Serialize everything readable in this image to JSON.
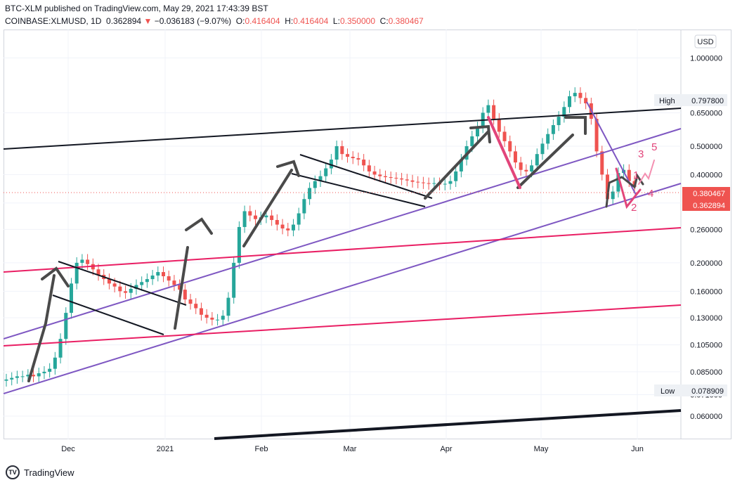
{
  "header": {
    "published": "BTC-XLM published on TradingView.com, May 29, 2021 17:43:39 BST",
    "symbol": "COINBASE:XLMUSD, 1D",
    "last": "0.362894",
    "change_arrow": "▼",
    "change": "−0.036183 (−9.07%)",
    "open_label": "O:",
    "open": "0.416404",
    "high_label": "H:",
    "high": "0.416404",
    "low_label": "L:",
    "low": "0.350000",
    "close_label": "C:",
    "close": "0.380467"
  },
  "footer": {
    "brand": "TradingView",
    "logo_icon": "tradingview-logo-icon"
  },
  "colors": {
    "up": "#26a69a",
    "down": "#ef5350",
    "accent": "#2962ff"
  },
  "chart_data": {
    "type": "candlestick",
    "scale": "log",
    "currency_label": "USD",
    "x_tick_labels": [
      "Dec",
      "2021",
      "Feb",
      "Mar",
      "Apr",
      "May",
      "Jun"
    ],
    "y_tick_labels": [
      "1.000000",
      "0.650000",
      "0.500000",
      "0.400000",
      "0.320000",
      "0.260000",
      "0.200000",
      "0.160000",
      "0.130000",
      "0.105000",
      "0.085000",
      "0.071000",
      "0.060000"
    ],
    "y_ticks": [
      1.0,
      0.65,
      0.5,
      0.4,
      0.32,
      0.26,
      0.2,
      0.16,
      0.13,
      0.105,
      0.085,
      0.071,
      0.06
    ],
    "ylim": [
      0.05,
      1.25
    ],
    "price_labels": [
      {
        "label": "High",
        "value": "0.797800"
      },
      {
        "label": "Low",
        "value": "0.078909"
      }
    ],
    "last_prices": [
      "0.380467",
      "0.362894"
    ],
    "annotations": [
      "1",
      "2",
      "3",
      "4",
      "5"
    ],
    "series_close": [
      0.08,
      0.081,
      0.082,
      0.082,
      0.083,
      0.082,
      0.084,
      0.085,
      0.087,
      0.095,
      0.11,
      0.135,
      0.17,
      0.2,
      0.205,
      0.198,
      0.19,
      0.182,
      0.176,
      0.17,
      0.166,
      0.16,
      0.158,
      0.163,
      0.168,
      0.172,
      0.176,
      0.181,
      0.186,
      0.18,
      0.174,
      0.168,
      0.162,
      0.15,
      0.145,
      0.14,
      0.133,
      0.13,
      0.128,
      0.128,
      0.132,
      0.152,
      0.2,
      0.265,
      0.3,
      0.29,
      0.282,
      0.286,
      0.29,
      0.28,
      0.27,
      0.262,
      0.258,
      0.27,
      0.295,
      0.33,
      0.36,
      0.38,
      0.395,
      0.42,
      0.45,
      0.5,
      0.47,
      0.46,
      0.455,
      0.45,
      0.43,
      0.41,
      0.4,
      0.395,
      0.392,
      0.39,
      0.388,
      0.385,
      0.382,
      0.378,
      0.376,
      0.374,
      0.372,
      0.374,
      0.37,
      0.372,
      0.38,
      0.41,
      0.45,
      0.5,
      0.54,
      0.58,
      0.65,
      0.69,
      0.62,
      0.56,
      0.52,
      0.48,
      0.44,
      0.415,
      0.41,
      0.43,
      0.47,
      0.51,
      0.55,
      0.59,
      0.63,
      0.68,
      0.74,
      0.76,
      0.73,
      0.7,
      0.62,
      0.48,
      0.4,
      0.33,
      0.35,
      0.405,
      0.415,
      0.38,
      0.363
    ]
  }
}
